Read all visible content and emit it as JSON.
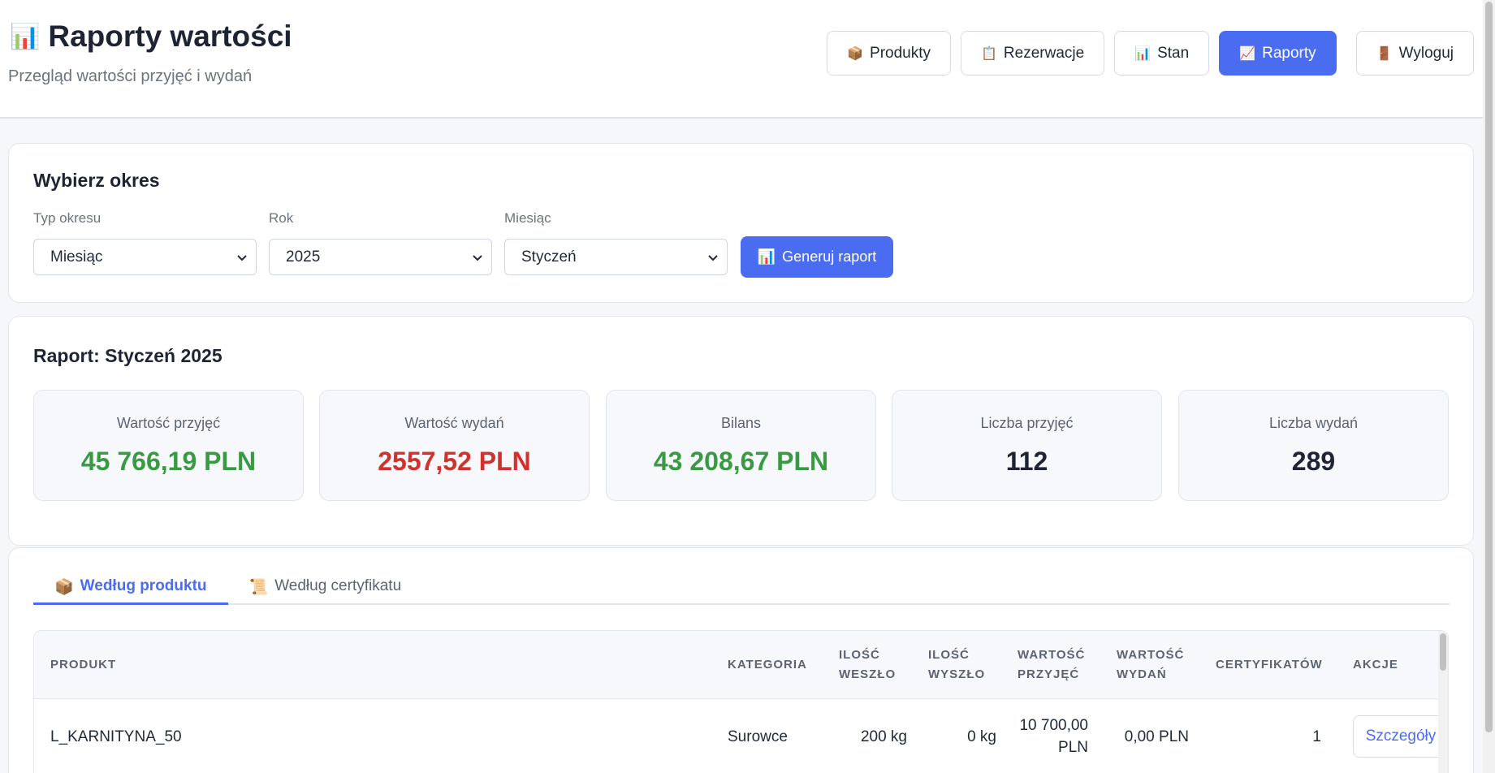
{
  "header": {
    "icon": "bar-chart-icon",
    "icon_glyph": "📊",
    "title": "Raporty wartości",
    "subtitle": "Przegląd wartości przyjęć i wydań"
  },
  "nav": [
    {
      "label": "Produkty",
      "icon": "📦",
      "icon_name": "package-icon"
    },
    {
      "label": "Rezerwacje",
      "icon": "📋",
      "icon_name": "clipboard-icon"
    },
    {
      "label": "Stan",
      "icon": "📊",
      "icon_name": "bar-chart-icon"
    },
    {
      "label": "Raporty",
      "icon": "📈",
      "icon_name": "chart-up-icon",
      "active": true
    },
    {
      "label": "Wyloguj",
      "icon": "🚪",
      "icon_name": "door-icon"
    }
  ],
  "period": {
    "title": "Wybierz okres",
    "fields": [
      {
        "label": "Typ okresu",
        "value": "Miesiąc"
      },
      {
        "label": "Rok",
        "value": "2025"
      },
      {
        "label": "Miesiąc",
        "value": "Styczeń"
      }
    ],
    "generate_label": "Generuj raport",
    "generate_icon": "📊"
  },
  "report": {
    "title": "Raport: Styczeń 2025",
    "stats": [
      {
        "label": "Wartość przyjęć",
        "value": "45 766,19 PLN",
        "tone": "green"
      },
      {
        "label": "Wartość wydań",
        "value": "2557,52 PLN",
        "tone": "red"
      },
      {
        "label": "Bilans",
        "value": "43 208,67 PLN",
        "tone": "green"
      },
      {
        "label": "Liczba przyjęć",
        "value": "112",
        "tone": "neutral"
      },
      {
        "label": "Liczba wydań",
        "value": "289",
        "tone": "neutral"
      }
    ]
  },
  "tabs": [
    {
      "label": "Według produktu",
      "icon": "📦",
      "active": true
    },
    {
      "label": "Według certyfikatu",
      "icon": "📜",
      "active": false
    }
  ],
  "table": {
    "headers": [
      "PRODUKT",
      "KATEGORIA",
      "ILOŚĆ WESZŁO",
      "ILOŚĆ WYSZŁO",
      "WARTOŚĆ PRZYJĘĆ",
      "WARTOŚĆ WYDAŃ",
      "CERTYFIKATÓW",
      "AKCJE"
    ],
    "rows": [
      {
        "product": "L_KARNITYNA_50",
        "category": "Surowce",
        "qty_in": "200 kg",
        "qty_out": "0 kg",
        "value_in": "10 700,00 PLN",
        "value_out": "0,00 PLN",
        "certificates": "1",
        "action": "Szczegóły"
      }
    ]
  },
  "colors": {
    "accent": "#4a6cf0",
    "positive": "#3a9a44",
    "negative": "#d2312d"
  }
}
